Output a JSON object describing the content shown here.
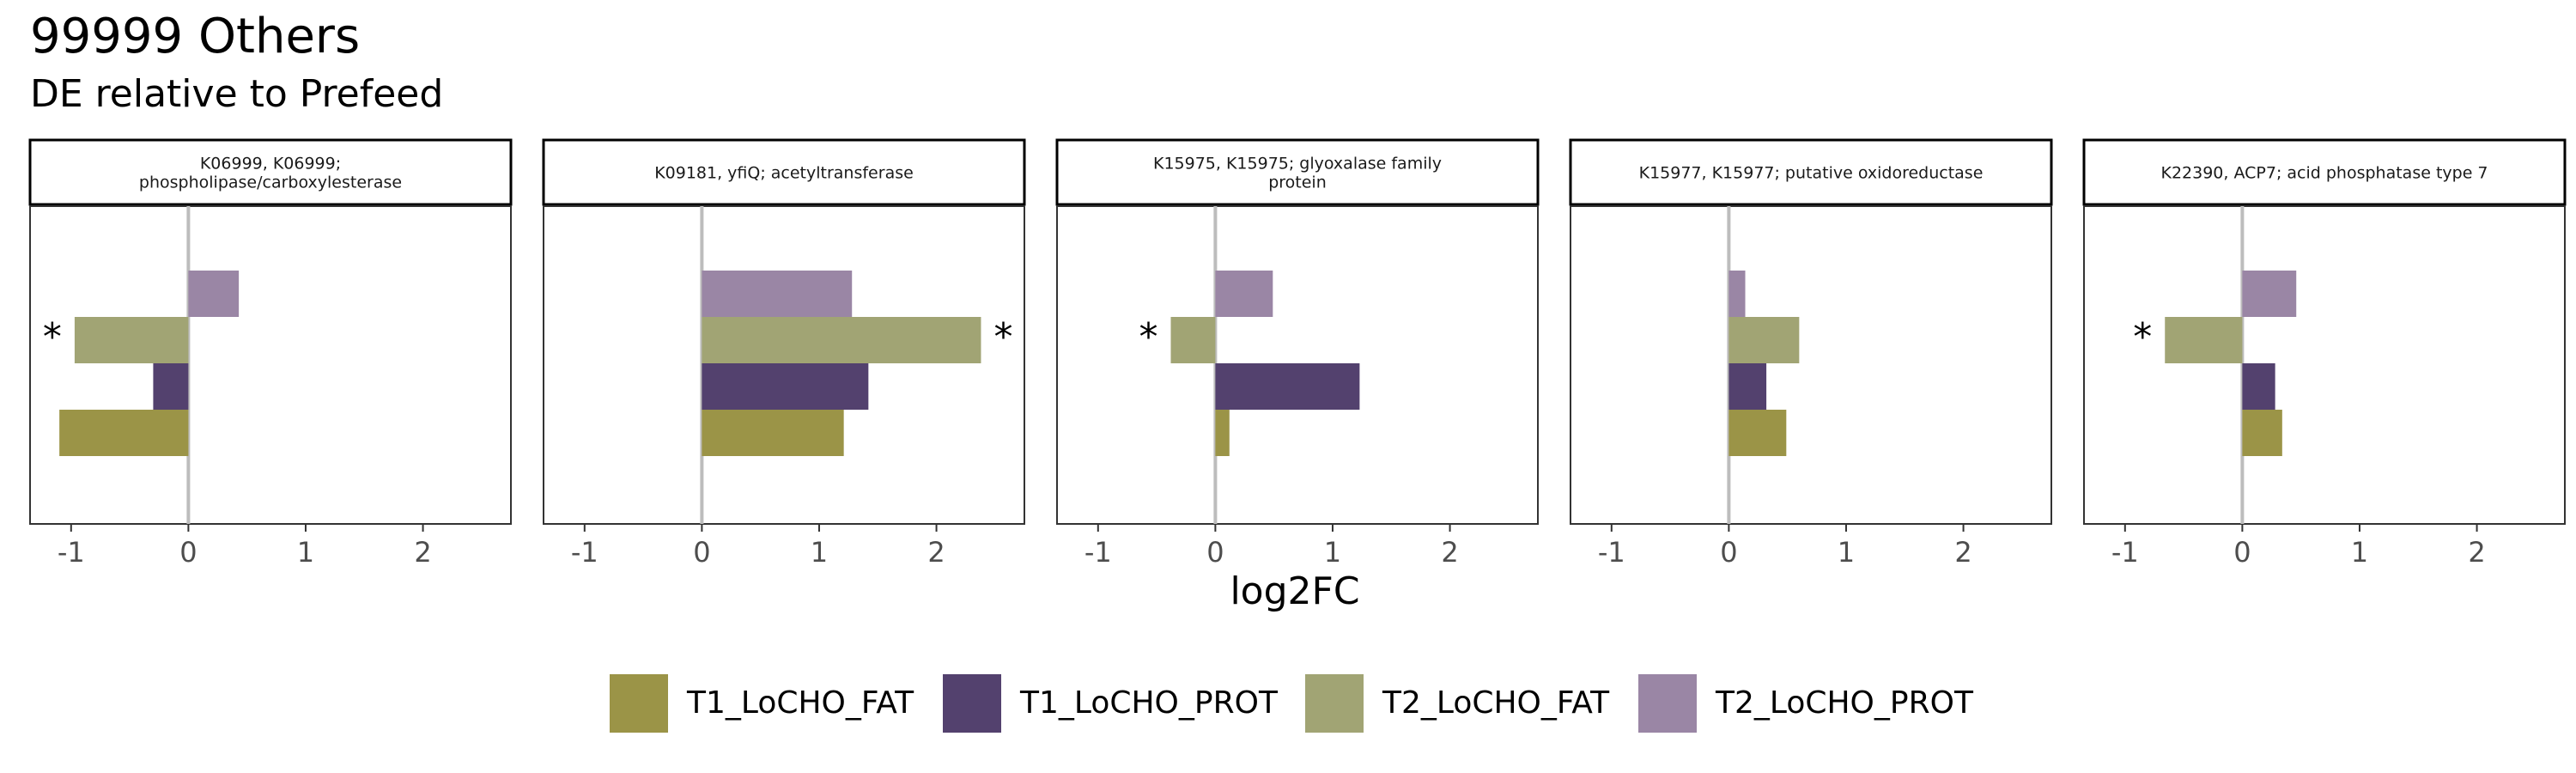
{
  "title": "99999 Others",
  "subtitle": "DE relative to Prefeed",
  "xlabel": "log2FC",
  "chart_data": {
    "type": "bar",
    "orientation": "horizontal",
    "title": "99999 Others",
    "subtitle": "DE relative to Prefeed",
    "xlabel": "log2FC",
    "xlim": [
      -1.35,
      2.75
    ],
    "xticks": [
      -1,
      0,
      1,
      2
    ],
    "xtick_labels": [
      "-1",
      "0",
      "1",
      "2"
    ],
    "grid": false,
    "legend_position": "bottom",
    "series": [
      {
        "name": "T1_LoCHO_FAT",
        "color": "#9b9447"
      },
      {
        "name": "T1_LoCHO_PROT",
        "color": "#53416e"
      },
      {
        "name": "T2_LoCHO_FAT",
        "color": "#a1a474"
      },
      {
        "name": "T2_LoCHO_PROT",
        "color": "#9a86a5"
      }
    ],
    "panels": [
      {
        "label": "K06999, K06999;\nphospholipase/carboxylesterase",
        "values": {
          "T1_LoCHO_FAT": -1.1,
          "T1_LoCHO_PROT": -0.3,
          "T2_LoCHO_FAT": -0.97,
          "T2_LoCHO_PROT": 0.43
        },
        "significant": [
          "T2_LoCHO_FAT"
        ]
      },
      {
        "label": "K09181, yfiQ; acetyltransferase",
        "values": {
          "T1_LoCHO_FAT": 1.21,
          "T1_LoCHO_PROT": 1.42,
          "T2_LoCHO_FAT": 2.38,
          "T2_LoCHO_PROT": 1.28
        },
        "significant": [
          "T2_LoCHO_FAT"
        ]
      },
      {
        "label": "K15975, K15975; glyoxalase family\nprotein",
        "values": {
          "T1_LoCHO_FAT": 0.12,
          "T1_LoCHO_PROT": 1.23,
          "T2_LoCHO_FAT": -0.38,
          "T2_LoCHO_PROT": 0.49
        },
        "significant": [
          "T2_LoCHO_FAT"
        ]
      },
      {
        "label": "K15977, K15977; putative oxidoreductase",
        "values": {
          "T1_LoCHO_FAT": 0.49,
          "T1_LoCHO_PROT": 0.32,
          "T2_LoCHO_FAT": 0.6,
          "T2_LoCHO_PROT": 0.14
        },
        "significant": []
      },
      {
        "label": "K22390, ACP7; acid phosphatase type 7",
        "values": {
          "T1_LoCHO_FAT": 0.34,
          "T1_LoCHO_PROT": 0.28,
          "T2_LoCHO_FAT": -0.66,
          "T2_LoCHO_PROT": 0.46
        },
        "significant": [
          "T2_LoCHO_FAT"
        ]
      }
    ],
    "significance_marker": "*"
  }
}
